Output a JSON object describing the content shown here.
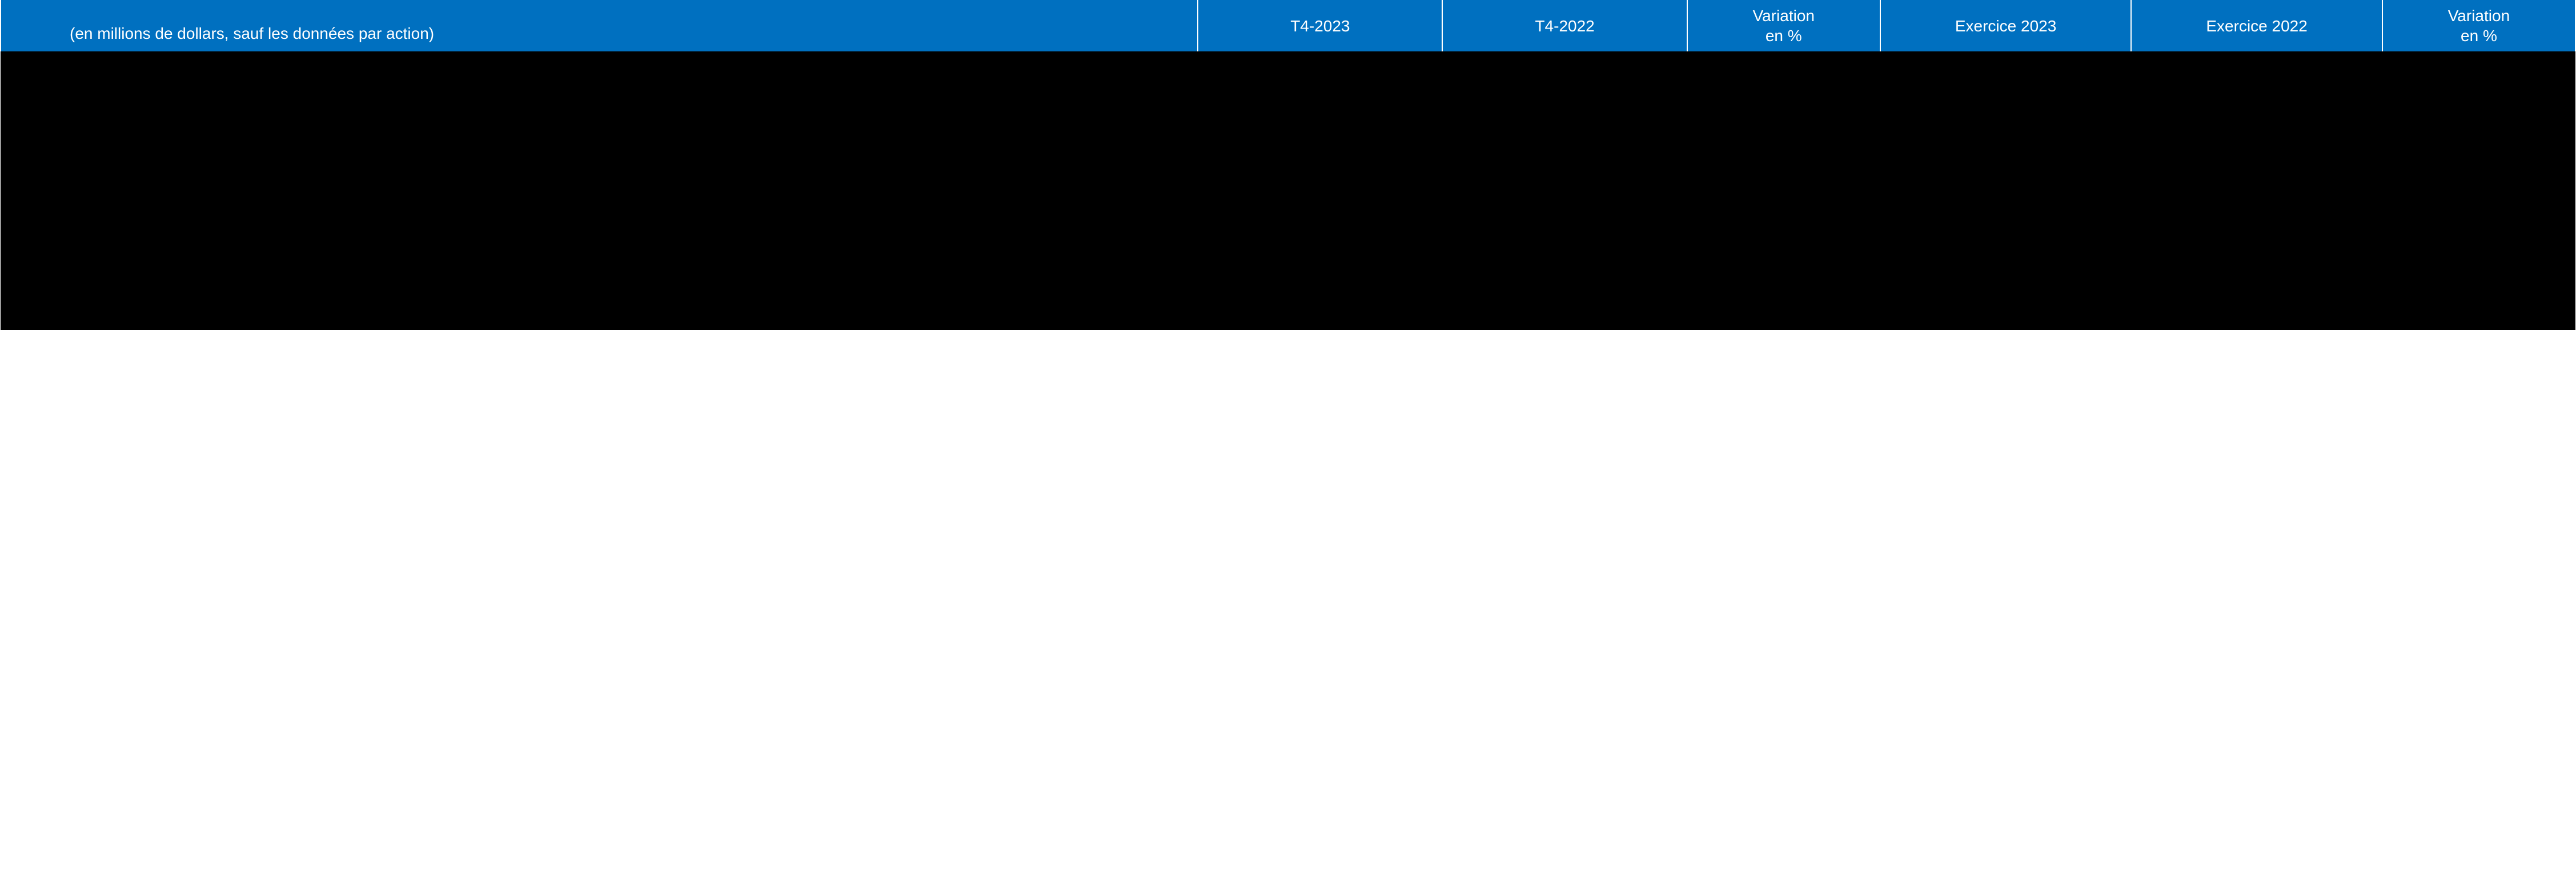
{
  "table": {
    "type": "table",
    "header_background": "#0070c0",
    "header_text_color": "#ffffff",
    "body_background": "#000000",
    "font_family": "Arial",
    "header_fontsize_pt": 21,
    "columns": [
      {
        "key": "label",
        "label": "(en millions de dollars, sauf les données par action)",
        "align": "left",
        "width_pct": 46.5
      },
      {
        "key": "t4_2023",
        "label": "T4-2023",
        "align": "center",
        "width_pct": 9.5
      },
      {
        "key": "t4_2022",
        "label": "T4-2022",
        "align": "center",
        "width_pct": 9.5
      },
      {
        "key": "var_q",
        "label": "Variation en %",
        "align": "center",
        "width_pct": 7.5
      },
      {
        "key": "ex_2023",
        "label": "Exercice 2023",
        "align": "center",
        "width_pct": 9.75
      },
      {
        "key": "ex_2022",
        "label": "Exercice 2022",
        "align": "center",
        "width_pct": 9.75
      },
      {
        "key": "var_y",
        "label": "Variation en %",
        "align": "center",
        "width_pct": 7.5
      }
    ],
    "rows": []
  }
}
